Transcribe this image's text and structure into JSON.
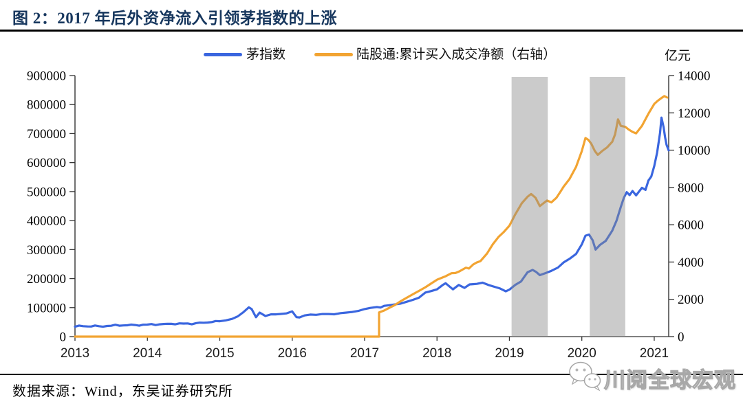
{
  "title": "图 2：2017 年后外资净流入引领茅指数的上涨",
  "right_axis_unit": "亿元",
  "source": "数据来源：Wind，东吴证券研究所",
  "watermark": {
    "text": "川阅全球宏观",
    "icon": "wechat-logo-icon"
  },
  "colors": {
    "title": "#17375E",
    "rule": "#000000",
    "axis": "#333333",
    "band": "rgba(140,140,140,0.45)"
  },
  "chart_data": {
    "type": "line",
    "title": "图 2：2017 年后外资净流入引领茅指数的上涨",
    "legend_position": "top",
    "grid": false,
    "x_axis": {
      "min": 2013,
      "max": 2021.2,
      "ticks": [
        2013,
        2014,
        2015,
        2016,
        2017,
        2018,
        2019,
        2020,
        2021
      ]
    },
    "left_axis": {
      "min": 0,
      "max": 900000,
      "ticks": [
        0,
        100000,
        200000,
        300000,
        400000,
        500000,
        600000,
        700000,
        800000,
        900000
      ]
    },
    "right_axis": {
      "min": 0,
      "max": 14000,
      "ticks": [
        0,
        2000,
        4000,
        6000,
        8000,
        10000,
        12000,
        14000
      ],
      "unit": "亿元"
    },
    "shaded_bands": [
      {
        "from": 2019.03,
        "to": 2019.53
      },
      {
        "from": 2020.11,
        "to": 2020.6
      }
    ],
    "series": [
      {
        "name": "茅指数",
        "axis": "left",
        "color": "#3A66DF",
        "noise": 1.6,
        "points": [
          [
            2013.0,
            34000
          ],
          [
            2013.17,
            35000
          ],
          [
            2013.33,
            36000
          ],
          [
            2013.5,
            37500
          ],
          [
            2013.67,
            38500
          ],
          [
            2013.83,
            40000
          ],
          [
            2014.0,
            41500
          ],
          [
            2014.17,
            42500
          ],
          [
            2014.33,
            44000
          ],
          [
            2014.5,
            45000
          ],
          [
            2014.67,
            46500
          ],
          [
            2014.83,
            48500
          ],
          [
            2015.0,
            53000
          ],
          [
            2015.08,
            56000
          ],
          [
            2015.17,
            61000
          ],
          [
            2015.25,
            70000
          ],
          [
            2015.33,
            85000
          ],
          [
            2015.4,
            101000
          ],
          [
            2015.44,
            95000
          ],
          [
            2015.5,
            67000
          ],
          [
            2015.55,
            83000
          ],
          [
            2015.63,
            71000
          ],
          [
            2015.71,
            77000
          ],
          [
            2015.83,
            78000
          ],
          [
            2015.92,
            80000
          ],
          [
            2016.0,
            87000
          ],
          [
            2016.06,
            67000
          ],
          [
            2016.1,
            66000
          ],
          [
            2016.17,
            73000
          ],
          [
            2016.25,
            76000
          ],
          [
            2016.33,
            75000
          ],
          [
            2016.42,
            78000
          ],
          [
            2016.5,
            78000
          ],
          [
            2016.58,
            77000
          ],
          [
            2016.67,
            81000
          ],
          [
            2016.75,
            83000
          ],
          [
            2016.83,
            85000
          ],
          [
            2016.92,
            89000
          ],
          [
            2017.0,
            95000
          ],
          [
            2017.08,
            99000
          ],
          [
            2017.17,
            102000
          ],
          [
            2017.27,
            106000
          ],
          [
            2017.33,
            108000
          ],
          [
            2017.42,
            111000
          ],
          [
            2017.5,
            114000
          ],
          [
            2017.58,
            120000
          ],
          [
            2017.67,
            127000
          ],
          [
            2017.75,
            134000
          ],
          [
            2017.84,
            152000
          ],
          [
            2017.92,
            157000
          ],
          [
            2018.0,
            163000
          ],
          [
            2018.08,
            178000
          ],
          [
            2018.12,
            184000
          ],
          [
            2018.22,
            163000
          ],
          [
            2018.3,
            178000
          ],
          [
            2018.38,
            168000
          ],
          [
            2018.45,
            180000
          ],
          [
            2018.55,
            182000
          ],
          [
            2018.63,
            186000
          ],
          [
            2018.71,
            178000
          ],
          [
            2018.79,
            172000
          ],
          [
            2018.87,
            166000
          ],
          [
            2018.95,
            156000
          ],
          [
            2019.0,
            162000
          ],
          [
            2019.08,
            178000
          ],
          [
            2019.16,
            190000
          ],
          [
            2019.25,
            222000
          ],
          [
            2019.32,
            230000
          ],
          [
            2019.42,
            212000
          ],
          [
            2019.5,
            219000
          ],
          [
            2019.58,
            227000
          ],
          [
            2019.67,
            238000
          ],
          [
            2019.75,
            256000
          ],
          [
            2019.83,
            268000
          ],
          [
            2019.92,
            285000
          ],
          [
            2020.0,
            318000
          ],
          [
            2020.05,
            348000
          ],
          [
            2020.1,
            352000
          ],
          [
            2020.15,
            332000
          ],
          [
            2020.19,
            300000
          ],
          [
            2020.25,
            316000
          ],
          [
            2020.33,
            330000
          ],
          [
            2020.42,
            365000
          ],
          [
            2020.48,
            400000
          ],
          [
            2020.54,
            448000
          ],
          [
            2020.58,
            478000
          ],
          [
            2020.62,
            498000
          ],
          [
            2020.66,
            488000
          ],
          [
            2020.7,
            502000
          ],
          [
            2020.75,
            487000
          ],
          [
            2020.83,
            513000
          ],
          [
            2020.88,
            506000
          ],
          [
            2020.92,
            538000
          ],
          [
            2020.96,
            552000
          ],
          [
            2021.0,
            588000
          ],
          [
            2021.04,
            635000
          ],
          [
            2021.08,
            702000
          ],
          [
            2021.1,
            755000
          ],
          [
            2021.13,
            722000
          ],
          [
            2021.15,
            688000
          ],
          [
            2021.17,
            662000
          ],
          [
            2021.2,
            642000
          ]
        ]
      },
      {
        "name": "陆股通:累计买入成交净额（右轴）",
        "axis": "right",
        "color": "#F2A432",
        "noise": 1.1,
        "points": [
          [
            2013.0,
            0
          ],
          [
            2017.2,
            0
          ],
          [
            2017.2,
            1300
          ],
          [
            2017.27,
            1400
          ],
          [
            2017.33,
            1520
          ],
          [
            2017.42,
            1700
          ],
          [
            2017.5,
            1900
          ],
          [
            2017.58,
            2080
          ],
          [
            2017.67,
            2280
          ],
          [
            2017.75,
            2450
          ],
          [
            2017.84,
            2650
          ],
          [
            2017.92,
            2850
          ],
          [
            2018.0,
            3050
          ],
          [
            2018.12,
            3240
          ],
          [
            2018.2,
            3400
          ],
          [
            2018.31,
            3500
          ],
          [
            2018.4,
            3700
          ],
          [
            2018.44,
            3650
          ],
          [
            2018.5,
            3870
          ],
          [
            2018.6,
            4050
          ],
          [
            2018.69,
            4450
          ],
          [
            2018.77,
            4950
          ],
          [
            2018.85,
            5350
          ],
          [
            2018.92,
            5600
          ],
          [
            2019.0,
            5950
          ],
          [
            2019.08,
            6550
          ],
          [
            2019.17,
            7150
          ],
          [
            2019.25,
            7500
          ],
          [
            2019.3,
            7650
          ],
          [
            2019.36,
            7450
          ],
          [
            2019.42,
            7000
          ],
          [
            2019.47,
            7150
          ],
          [
            2019.52,
            7300
          ],
          [
            2019.58,
            7200
          ],
          [
            2019.65,
            7450
          ],
          [
            2019.75,
            8050
          ],
          [
            2019.83,
            8450
          ],
          [
            2019.92,
            9100
          ],
          [
            2020.0,
            9950
          ],
          [
            2020.05,
            10650
          ],
          [
            2020.09,
            10550
          ],
          [
            2020.13,
            10350
          ],
          [
            2020.18,
            9950
          ],
          [
            2020.22,
            9750
          ],
          [
            2020.28,
            9950
          ],
          [
            2020.35,
            10150
          ],
          [
            2020.42,
            10450
          ],
          [
            2020.46,
            10850
          ],
          [
            2020.5,
            11650
          ],
          [
            2020.54,
            11300
          ],
          [
            2020.6,
            11250
          ],
          [
            2020.65,
            11100
          ],
          [
            2020.7,
            10980
          ],
          [
            2020.75,
            10900
          ],
          [
            2020.83,
            11300
          ],
          [
            2020.92,
            11950
          ],
          [
            2021.0,
            12480
          ],
          [
            2021.05,
            12650
          ],
          [
            2021.1,
            12800
          ],
          [
            2021.14,
            12900
          ],
          [
            2021.18,
            12820
          ]
        ]
      }
    ]
  }
}
